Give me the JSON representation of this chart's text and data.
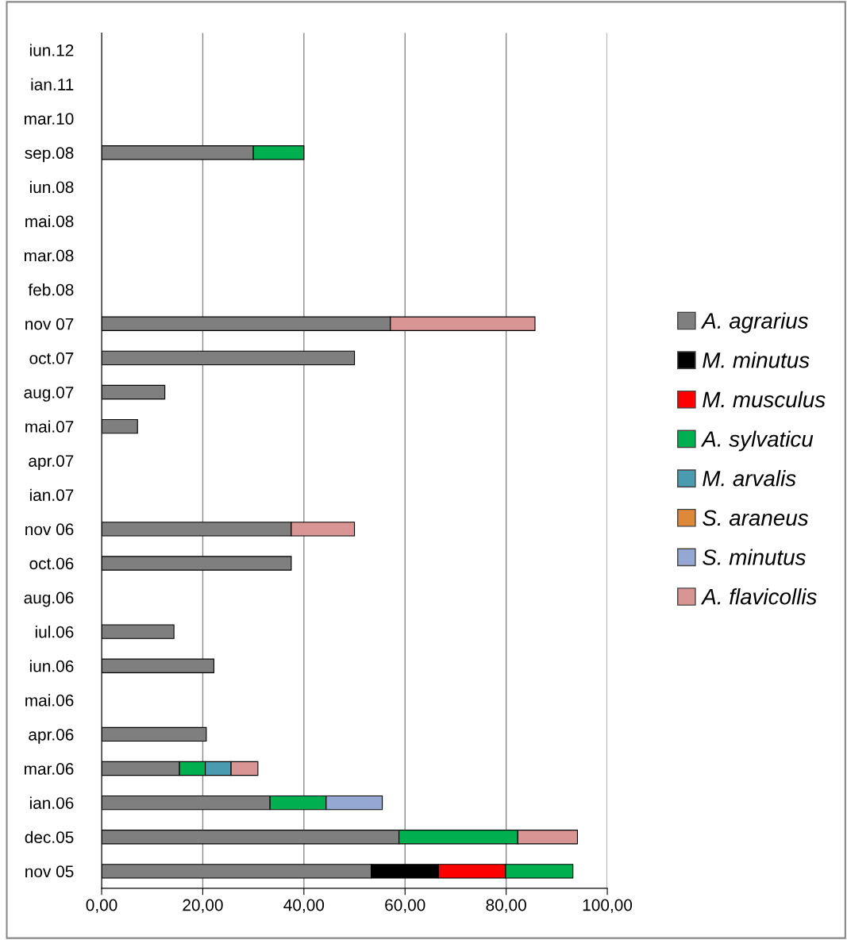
{
  "chart_data": {
    "type": "bar",
    "orientation": "horizontal",
    "stacked": true,
    "categories": [
      "iun.12",
      "ian.11",
      "mar.10",
      "sep.08",
      "iun.08",
      "mai.08",
      "mar.08",
      "feb.08",
      "nov 07",
      "oct.07",
      "aug.07",
      "mai.07",
      "apr.07",
      "ian.07",
      "nov 06",
      "oct.06",
      "aug.06",
      "iul.06",
      "iun.06",
      "mai.06",
      "apr.06",
      "mar.06",
      "ian.06",
      "dec.05",
      "nov 05"
    ],
    "series": [
      {
        "name": "A. agrarius",
        "color": "#7f7f7f",
        "values": [
          null,
          null,
          null,
          30,
          null,
          null,
          null,
          null,
          57.1,
          50,
          12.5,
          7.1,
          null,
          null,
          37.5,
          37.5,
          null,
          14.3,
          22.2,
          null,
          20.7,
          15.4,
          33.3,
          58.8,
          53.3
        ]
      },
      {
        "name": "M. minutus",
        "color": "#000000",
        "values": [
          null,
          null,
          null,
          null,
          null,
          null,
          null,
          null,
          null,
          null,
          null,
          null,
          null,
          null,
          null,
          null,
          null,
          null,
          null,
          null,
          null,
          null,
          null,
          null,
          13.3
        ]
      },
      {
        "name": "M. musculus",
        "color": "#ff0000",
        "values": [
          null,
          null,
          null,
          null,
          null,
          null,
          null,
          null,
          null,
          null,
          null,
          null,
          null,
          null,
          null,
          null,
          null,
          null,
          null,
          null,
          null,
          null,
          null,
          null,
          13.3
        ]
      },
      {
        "name": "A. sylvaticu",
        "color": "#00b050",
        "values": [
          null,
          null,
          null,
          10,
          null,
          null,
          null,
          null,
          null,
          null,
          null,
          null,
          null,
          null,
          null,
          null,
          null,
          null,
          null,
          null,
          null,
          5.1,
          11.1,
          23.5,
          13.3
        ]
      },
      {
        "name": "M. arvalis",
        "color": "#4a9bb0",
        "values": [
          null,
          null,
          null,
          null,
          null,
          null,
          null,
          null,
          null,
          null,
          null,
          null,
          null,
          null,
          null,
          null,
          null,
          null,
          null,
          null,
          null,
          5.1,
          null,
          null,
          null
        ]
      },
      {
        "name": "S. araneus",
        "color": "#e0883a",
        "values": [
          null,
          null,
          null,
          null,
          null,
          null,
          null,
          null,
          null,
          null,
          null,
          null,
          null,
          null,
          null,
          null,
          null,
          null,
          null,
          null,
          null,
          null,
          null,
          null,
          null
        ]
      },
      {
        "name": "S. minutus",
        "color": "#95a8d4",
        "values": [
          null,
          null,
          null,
          null,
          null,
          null,
          null,
          null,
          null,
          null,
          null,
          null,
          null,
          null,
          null,
          null,
          null,
          null,
          null,
          null,
          null,
          null,
          11.1,
          null,
          null
        ]
      },
      {
        "name": "A. flavicollis",
        "color": "#d99594",
        "values": [
          null,
          null,
          null,
          null,
          null,
          null,
          null,
          null,
          28.6,
          null,
          null,
          null,
          null,
          null,
          12.5,
          null,
          null,
          null,
          null,
          null,
          null,
          5.3,
          null,
          11.8,
          null
        ]
      }
    ],
    "xlim": [
      0,
      100
    ],
    "xticks": [
      {
        "value": 0,
        "label": "0,00"
      },
      {
        "value": 20,
        "label": "20,00"
      },
      {
        "value": 40,
        "label": "40,00"
      },
      {
        "value": 60,
        "label": "60,00"
      },
      {
        "value": 80,
        "label": "80,00"
      },
      {
        "value": 100,
        "label": "100,00"
      }
    ],
    "grid": "x",
    "legend": "right"
  }
}
